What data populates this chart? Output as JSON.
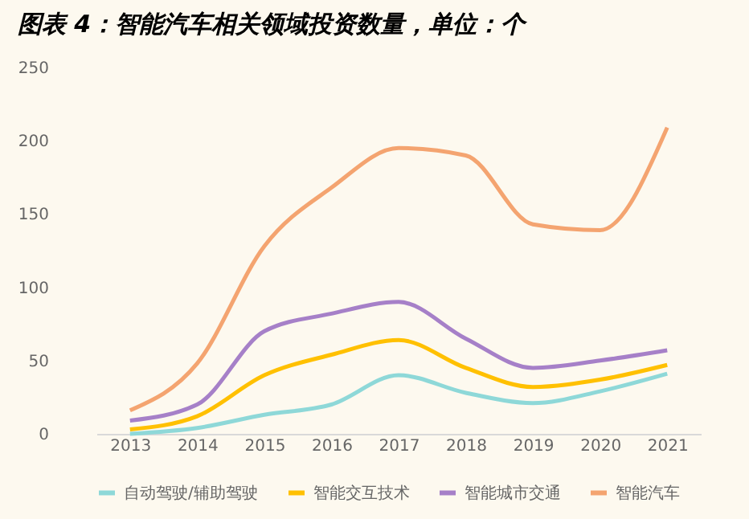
{
  "chart_data": {
    "type": "line",
    "title": "图表 4：智能汽车相关领域投资数量，单位：个",
    "categories": [
      "2013",
      "2014",
      "2015",
      "2016",
      "2017",
      "2018",
      "2019",
      "2020",
      "2021"
    ],
    "series": [
      {
        "name": "自动驾驶/辅助驾驶",
        "color": "#8ed8d8",
        "values": [
          0,
          4,
          13,
          20,
          40,
          28,
          21,
          29,
          41
        ]
      },
      {
        "name": "智能交互技术",
        "color": "#ffc000",
        "values": [
          3,
          12,
          40,
          54,
          64,
          45,
          32,
          37,
          47
        ]
      },
      {
        "name": "智能城市交通",
        "color": "#a680c8",
        "values": [
          9,
          20,
          70,
          82,
          90,
          65,
          45,
          50,
          57
        ]
      },
      {
        "name": "智能汽车",
        "color": "#f4a470",
        "values": [
          16,
          48,
          128,
          168,
          195,
          190,
          143,
          139,
          209
        ]
      }
    ],
    "ylim": [
      0,
      250
    ],
    "yticks": [
      0,
      50,
      100,
      150,
      200,
      250
    ],
    "grid": false,
    "legend": "bottom",
    "marker": "none",
    "line_style": "solid"
  }
}
